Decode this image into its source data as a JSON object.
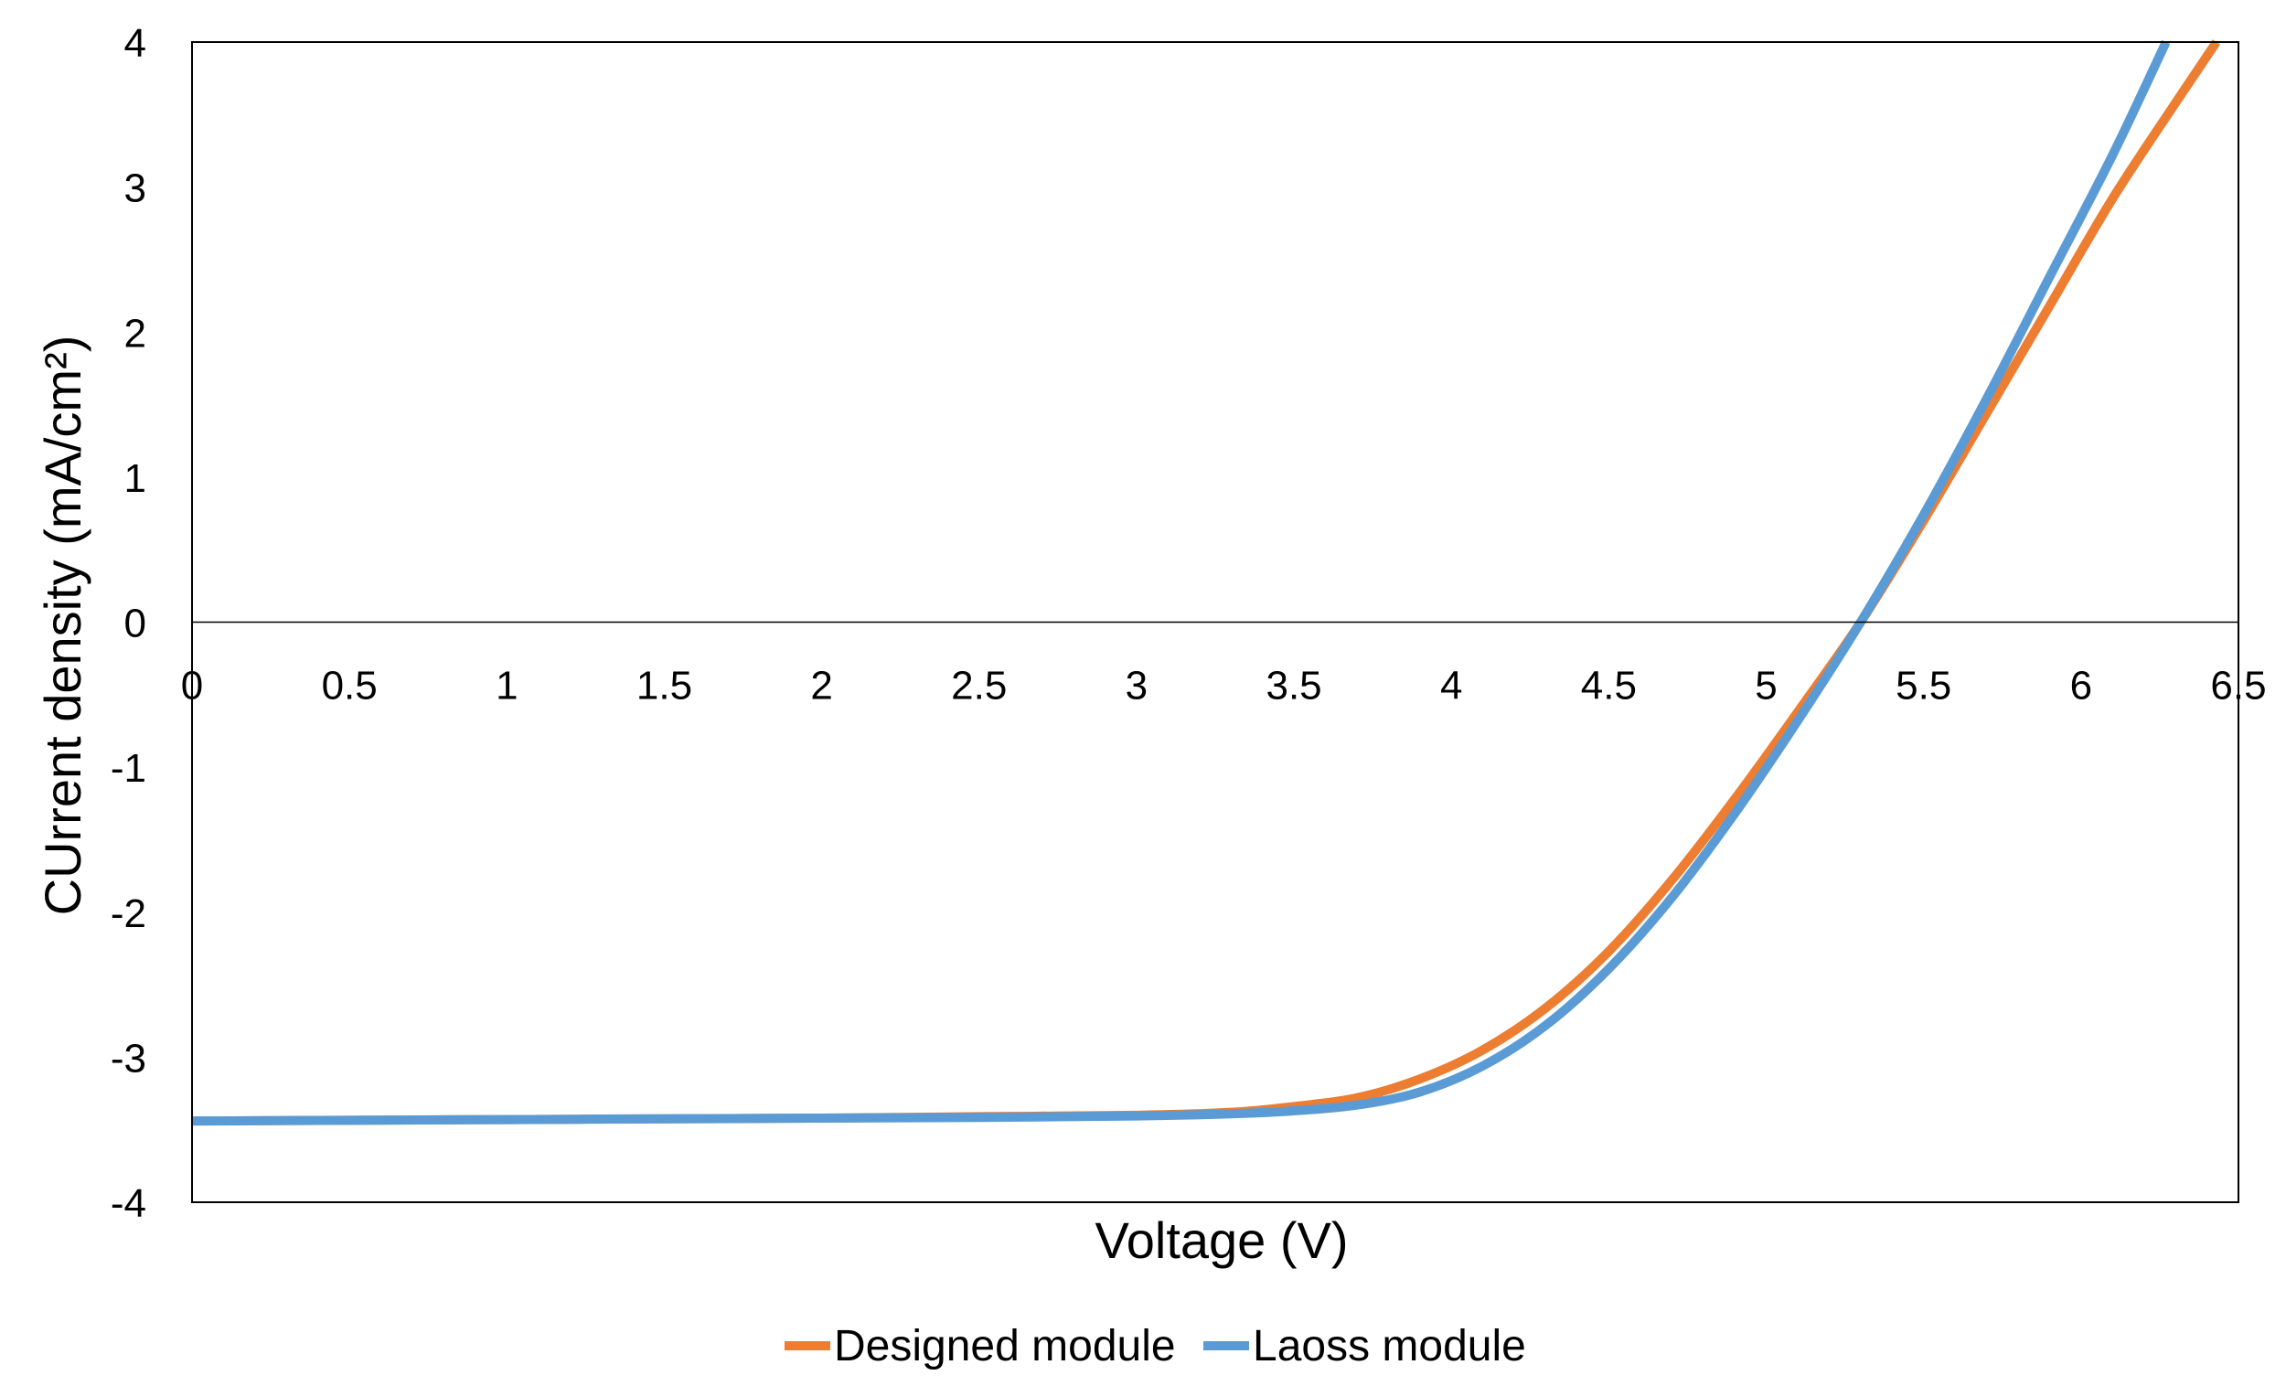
{
  "chart_data": {
    "type": "line",
    "title": "",
    "xlabel": "Voltage (V)",
    "ylabel": "CUrrent density (mA/cm²)",
    "xlim": [
      0,
      6.5
    ],
    "ylim": [
      -4,
      4
    ],
    "x_ticks": [
      0,
      0.5,
      1,
      1.5,
      2,
      2.5,
      3,
      3.5,
      4,
      4.5,
      5,
      5.5,
      6,
      6.5
    ],
    "x_tick_labels": [
      "0",
      "0.5",
      "1",
      "1.5",
      "2",
      "2.5",
      "3",
      "3.5",
      "4",
      "4.5",
      "5",
      "5.5",
      "6",
      "6.5"
    ],
    "y_ticks": [
      -4,
      -3,
      -2,
      -1,
      0,
      1,
      2,
      3,
      4
    ],
    "y_tick_labels": [
      "-4",
      "-3",
      "-2",
      "-1",
      "0",
      "1",
      "2",
      "3",
      "4"
    ],
    "grid": false,
    "legend_position": "bottom-center",
    "series": [
      {
        "name": "Designed module",
        "color": "#ED7D31",
        "x": [
          0,
          0.5,
          1,
          1.5,
          2,
          2.5,
          3,
          3.3,
          3.5,
          3.7,
          3.9,
          4.1,
          4.3,
          4.5,
          4.7,
          4.9,
          5.1,
          5.3,
          5.5,
          5.7,
          5.9,
          6.1,
          6.3,
          6.43
        ],
        "y": [
          -3.44,
          -3.435,
          -3.43,
          -3.425,
          -3.42,
          -3.41,
          -3.4,
          -3.38,
          -3.34,
          -3.28,
          -3.15,
          -2.95,
          -2.66,
          -2.27,
          -1.78,
          -1.22,
          -0.62,
          0.0,
          0.7,
          1.44,
          2.18,
          2.92,
          3.58,
          4.0
        ]
      },
      {
        "name": "Laoss module",
        "color": "#5B9BD5",
        "x": [
          0,
          0.5,
          1,
          1.5,
          2,
          2.5,
          3,
          3.3,
          3.5,
          3.7,
          3.9,
          4.1,
          4.3,
          4.5,
          4.7,
          4.9,
          5.1,
          5.3,
          5.5,
          5.7,
          5.9,
          6.1,
          6.27
        ],
        "y": [
          -3.44,
          -3.435,
          -3.43,
          -3.425,
          -3.42,
          -3.415,
          -3.405,
          -3.39,
          -3.37,
          -3.33,
          -3.24,
          -3.06,
          -2.78,
          -2.39,
          -1.9,
          -1.32,
          -0.68,
          0.0,
          0.74,
          1.54,
          2.38,
          3.22,
          4.0
        ]
      }
    ]
  }
}
